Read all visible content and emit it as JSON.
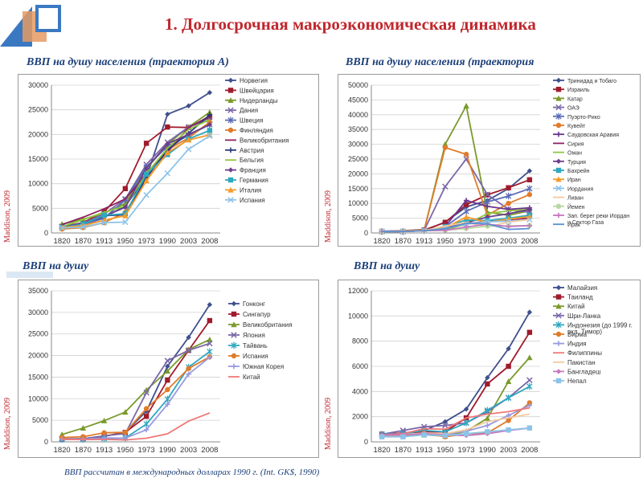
{
  "slide": {
    "title": "1. Долгосрочная макроэкономическая динамика",
    "footnote": "ВВП рассчитан в международных долларах 1990 г. (Int. GK$, 1990)"
  },
  "colors": {
    "title": "#c0272d",
    "panel_title": "#1c3f7a",
    "logo_blue": "#3b78c2",
    "logo_orange": "#e59a61"
  },
  "panels": [
    {
      "title": "ВВП на душу населения (траектория А)",
      "source": "Maddison, 2009",
      "chart_data": {
        "type": "line",
        "categories": [
          "1820",
          "1870",
          "1913",
          "1950",
          "1973",
          "1990",
          "2003",
          "2008"
        ],
        "ylim": [
          0,
          30000
        ],
        "yticks": [
          0,
          5000,
          10000,
          15000,
          20000,
          25000,
          30000
        ],
        "grid": true,
        "legend": "right",
        "series": [
          {
            "name": "Норвегия",
            "color": "#3f4f8c",
            "marker": "diamond",
            "values": [
              1100,
              1900,
              3200,
              5500,
              11300,
              24100,
              25800,
              28500
            ]
          },
          {
            "name": "Швейцария",
            "color": "#a01b2d",
            "marker": "square",
            "values": [
              1300,
              2100,
              4300,
              9000,
              18200,
              21500,
              21400,
              23500
            ]
          },
          {
            "name": "Нидерланды",
            "color": "#7a9a2b",
            "marker": "triangle",
            "values": [
              1800,
              2800,
              4000,
              6000,
              13000,
              18000,
              21500,
              24500
            ]
          },
          {
            "name": "Дания",
            "color": "#7b68a8",
            "marker": "x",
            "values": [
              1300,
              2000,
              3900,
              6900,
              13900,
              18400,
              21500,
              23000
            ]
          },
          {
            "name": "Швеция",
            "color": "#5a6cb5",
            "marker": "star",
            "values": [
              1200,
              1700,
              3000,
              6700,
              13400,
              17600,
              19800,
              22000
            ]
          },
          {
            "name": "Финляндия",
            "color": "#e07b2a",
            "marker": "circle",
            "values": [
              800,
              1100,
              2100,
              4200,
              11100,
              16900,
              19300,
              22500
            ]
          },
          {
            "name": "Великобритания",
            "color": "#8e2060",
            "marker": "none",
            "values": [
              1700,
              3200,
              4900,
              6900,
              12000,
              16400,
              21400,
              23700
            ]
          },
          {
            "name": "Австрия",
            "color": "#2a3b7a",
            "marker": "plus",
            "values": [
              1200,
              1900,
              3500,
              3700,
              11200,
              16900,
              20200,
              24000
            ]
          },
          {
            "name": "Бельгия",
            "color": "#8ec63f",
            "marker": "none",
            "values": [
              1300,
              2700,
              4200,
              5500,
              12000,
              17200,
              21000,
              23000
            ]
          },
          {
            "name": "Франция",
            "color": "#6b3f8c",
            "marker": "diamond",
            "values": [
              1100,
              1900,
              3400,
              5200,
              13100,
              18100,
              20000,
              22000
            ]
          },
          {
            "name": "Германия",
            "color": "#2fa8c0",
            "marker": "square",
            "values": [
              1100,
              1800,
              3600,
              3900,
              11900,
              15900,
              19100,
              20800
            ]
          },
          {
            "name": "Италия",
            "color": "#f59a2a",
            "marker": "triangle",
            "values": [
              1100,
              1500,
              2600,
              3500,
              10600,
              16300,
              18900,
              19900
            ]
          },
          {
            "name": "Испания",
            "color": "#8cc3e8",
            "marker": "x",
            "values": [
              1000,
              1200,
              2100,
              2200,
              7700,
              12100,
              17000,
              19700
            ]
          }
        ]
      }
    },
    {
      "title": "ВВП на душу населения (траектория",
      "source": "Maddison, 2009",
      "chart_data": {
        "type": "line",
        "categories": [
          "1820",
          "1870",
          "1913",
          "1950",
          "1973",
          "1990",
          "2003",
          "2008"
        ],
        "ylim": [
          0,
          50000
        ],
        "yticks": [
          0,
          5000,
          10000,
          15000,
          20000,
          25000,
          30000,
          35000,
          40000,
          45000,
          50000
        ],
        "grid": true,
        "legend": "right",
        "series": [
          {
            "name": "Тринидад и Тобаго",
            "color": "#3f4f8c",
            "marker": "diamond",
            "values": [
              500,
              500,
              800,
              3700,
              8800,
              11000,
              15000,
              21000
            ]
          },
          {
            "name": "Израиль",
            "color": "#a01b2d",
            "marker": "square",
            "values": [
              500,
              500,
              1000,
              3600,
              9600,
              12900,
              15300,
              18000
            ]
          },
          {
            "name": "Катар",
            "color": "#7a9a2b",
            "marker": "triangle",
            "values": [
              500,
              500,
              800,
              30000,
              43000,
              7000,
              6000,
              7500
            ]
          },
          {
            "name": "ОАЭ",
            "color": "#7b68a8",
            "marker": "x",
            "values": [
              500,
              500,
              800,
              15700,
              25000,
              13000,
              8000,
              7000
            ]
          },
          {
            "name": "Пуэрто-Рико",
            "color": "#5a6cb5",
            "marker": "star",
            "values": [
              500,
              500,
              800,
              2100,
              7300,
              10500,
              12500,
              15000
            ]
          },
          {
            "name": "Кувейт",
            "color": "#e07b2a",
            "marker": "circle",
            "values": [
              500,
              500,
              800,
              28900,
              26600,
              6000,
              10000,
              13000
            ]
          },
          {
            "name": "Саудовская Аравия",
            "color": "#6a3590",
            "marker": "plus",
            "values": [
              500,
              500,
              800,
              2200,
              11000,
              9000,
              8000,
              8500
            ]
          },
          {
            "name": "Сирия",
            "color": "#8e2060",
            "marker": "none",
            "values": [
              500,
              500,
              800,
              1400,
              3000,
              4000,
              4500,
              5000
            ]
          },
          {
            "name": "Оман",
            "color": "#8ec63f",
            "marker": "none",
            "values": [
              500,
              500,
              800,
              1100,
              3000,
              6500,
              7500,
              8000
            ]
          },
          {
            "name": "Турция",
            "color": "#6b3f8c",
            "marker": "diamond",
            "values": [
              600,
              800,
              1200,
              1600,
              3500,
              5400,
              6500,
              8000
            ]
          },
          {
            "name": "Бахрейн",
            "color": "#2fa8c0",
            "marker": "square",
            "values": [
              500,
              500,
              800,
              2100,
              4400,
              4200,
              5000,
              6000
            ]
          },
          {
            "name": "Иран",
            "color": "#f59a2a",
            "marker": "triangle",
            "values": [
              500,
              700,
              1000,
              1700,
              5400,
              3600,
              4700,
              5500
            ]
          },
          {
            "name": "Иордания",
            "color": "#8cc3e8",
            "marker": "x",
            "values": [
              500,
              500,
              800,
              1600,
              3000,
              3800,
              4000,
              4500
            ]
          },
          {
            "name": "Ливан",
            "color": "#f3c9a0",
            "marker": "none",
            "values": [
              500,
              500,
              800,
              2400,
              3600,
              2000,
              3700,
              4500
            ]
          },
          {
            "name": "Йемен",
            "color": "#b8d8a0",
            "marker": "circle",
            "values": [
              500,
              500,
              700,
              900,
              1500,
              2300,
              2400,
              2500
            ]
          },
          {
            "name": "Зап. берег реки Иордан и Сектор Газа",
            "color": "#c678c0",
            "marker": "plus",
            "values": [
              500,
              500,
              800,
              900,
              2000,
              3000,
              2200,
              2500
            ]
          },
          {
            "name": "Ирак",
            "color": "#5b8fd0",
            "marker": "none",
            "values": [
              500,
              500,
              800,
              1400,
              3300,
              3100,
              1200,
              1500
            ]
          }
        ]
      }
    },
    {
      "title": "ВВП на душу",
      "source": "Maddison, 2009",
      "chart_data": {
        "type": "line",
        "categories": [
          "1820",
          "1870",
          "1913",
          "1950",
          "1973",
          "1990",
          "2003",
          "2008"
        ],
        "ylim": [
          0,
          35000
        ],
        "yticks": [
          0,
          5000,
          10000,
          15000,
          20000,
          25000,
          30000,
          35000
        ],
        "grid": true,
        "legend": "right",
        "series": [
          {
            "name": "Гонконг",
            "color": "#3f4f8c",
            "marker": "diamond",
            "values": [
              600,
              700,
              1300,
              2200,
              7100,
              17500,
              24200,
              31800
            ]
          },
          {
            "name": "Сингапур",
            "color": "#a01b2d",
            "marker": "square",
            "values": [
              600,
              700,
              1300,
              2200,
              5900,
              14300,
              21200,
              28100
            ]
          },
          {
            "name": "Великобритания",
            "color": "#7a9a2b",
            "marker": "triangle",
            "values": [
              1700,
              3200,
              4900,
              6900,
              12000,
              16400,
              21400,
              23700
            ]
          },
          {
            "name": "Япония",
            "color": "#7b68a8",
            "marker": "x",
            "values": [
              700,
              700,
              1400,
              1900,
              11400,
              18800,
              21200,
              22800
            ]
          },
          {
            "name": "Тайвань",
            "color": "#2fa8c0",
            "marker": "star",
            "values": [
              550,
              550,
              750,
              900,
              4100,
              9900,
              17300,
              20900
            ]
          },
          {
            "name": "Испания",
            "color": "#e07b2a",
            "marker": "circle",
            "values": [
              1000,
              1200,
              2100,
              2200,
              7700,
              12100,
              17000,
              19700
            ]
          },
          {
            "name": "Южная Корея",
            "color": "#9a9ae0",
            "marker": "plus",
            "values": [
              600,
              600,
              900,
              850,
              2800,
              8700,
              15700,
              19600
            ]
          },
          {
            "name": "Китай",
            "color": "#f07878",
            "marker": "none",
            "values": [
              600,
              530,
              550,
              450,
              840,
              1870,
              4800,
              6700
            ]
          }
        ]
      }
    },
    {
      "title": "ВВП на душу",
      "source": "Maddison, 2009",
      "chart_data": {
        "type": "line",
        "categories": [
          "1820",
          "1870",
          "1913",
          "1950",
          "1973",
          "1990",
          "2003",
          "2008"
        ],
        "ylim": [
          0,
          12000
        ],
        "yticks": [
          0,
          2000,
          4000,
          6000,
          8000,
          10000,
          12000
        ],
        "grid": true,
        "legend": "right",
        "series": [
          {
            "name": "Малайзия",
            "color": "#3f4f8c",
            "marker": "diamond",
            "values": [
              600,
              700,
              900,
              1600,
              2600,
              5100,
              7400,
              10300
            ]
          },
          {
            "name": "Таиланд",
            "color": "#a01b2d",
            "marker": "square",
            "values": [
              600,
              700,
              800,
              800,
              1900,
              4600,
              6000,
              8700
            ]
          },
          {
            "name": "Китай",
            "color": "#7a9a2b",
            "marker": "triangle",
            "values": [
              600,
              530,
              550,
              450,
              840,
              1870,
              4800,
              6700
            ]
          },
          {
            "name": "Шри-Ланка",
            "color": "#7b68a8",
            "marker": "x",
            "values": [
              600,
              900,
              1200,
              1300,
              1500,
              2400,
              3500,
              4900
            ]
          },
          {
            "name": "Индонезия (до 1999 г. вкл. Тимор)",
            "color": "#2fa8c0",
            "marker": "star",
            "values": [
              600,
              650,
              900,
              800,
              1500,
              2500,
              3500,
              4400
            ]
          },
          {
            "name": "Бирма",
            "color": "#e07b2a",
            "marker": "circle",
            "values": [
              500,
              500,
              700,
              400,
              650,
              700,
              1700,
              3100
            ]
          },
          {
            "name": "Индия",
            "color": "#9a9ae0",
            "marker": "plus",
            "values": [
              530,
              530,
              670,
              620,
              850,
              1300,
              2100,
              2900
            ]
          },
          {
            "name": "Филиппины",
            "color": "#f07878",
            "marker": "none",
            "values": [
              550,
              650,
              1050,
              1000,
              1900,
              2200,
              2400,
              2700
            ]
          },
          {
            "name": "Пакистан",
            "color": "#f3c9a0",
            "marker": "none",
            "values": [
              550,
              550,
              700,
              650,
              950,
              1600,
              1900,
              2200
            ]
          },
          {
            "name": "Бангладеш",
            "color": "#c678c0",
            "marker": "diamond",
            "values": [
              550,
              550,
              650,
              550,
              500,
              650,
              900,
              1100
            ]
          },
          {
            "name": "Непал",
            "color": "#8cc3e8",
            "marker": "square",
            "values": [
              400,
              400,
              550,
              500,
              650,
              800,
              950,
              1100
            ]
          }
        ]
      }
    }
  ]
}
